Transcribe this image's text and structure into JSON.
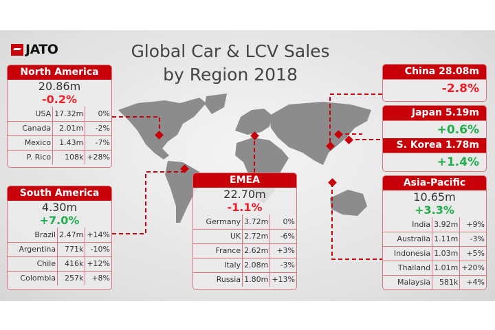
{
  "logo": "JATO",
  "title": {
    "line1": "Global Car & LCV Sales",
    "line2": "by Region 2018"
  },
  "colors": {
    "accent": "#c8000a",
    "negative": "#ee1c25",
    "positive": "#1fae4b"
  },
  "north_america": {
    "name": "North America",
    "total": "20.86m",
    "change": "-0.2%",
    "rows": [
      [
        "USA",
        "17.32m",
        "0%"
      ],
      [
        "Canada",
        "2.01m",
        "-2%"
      ],
      [
        "Mexico",
        "1.43m",
        "-7%"
      ],
      [
        "P. Rico",
        "108k",
        "+28%"
      ]
    ]
  },
  "south_america": {
    "name": "South America",
    "total": "4.30m",
    "change": "+7.0%",
    "rows": [
      [
        "Brazil",
        "2.47m",
        "+14%"
      ],
      [
        "Argentina",
        "771k",
        "-10%"
      ],
      [
        "Chile",
        "416k",
        "+12%"
      ],
      [
        "Colombia",
        "257k",
        "+8%"
      ]
    ]
  },
  "emea": {
    "name": "EMEA",
    "total": "22.70m",
    "change": "-1.1%",
    "rows": [
      [
        "Germany",
        "3.72m",
        "0%"
      ],
      [
        "UK",
        "2.72m",
        "-6%"
      ],
      [
        "France",
        "2.62m",
        "+3%"
      ],
      [
        "Italy",
        "2.08m",
        "-3%"
      ],
      [
        "Russia",
        "1.80m",
        "+13%"
      ]
    ]
  },
  "china": {
    "name": "China 28.08m",
    "change": "-2.8%"
  },
  "japan": {
    "name": "Japan 5.19m",
    "change": "+0.6%"
  },
  "korea": {
    "name": "S. Korea 1.78m",
    "change": "+1.4%"
  },
  "asia_pacific": {
    "name": "Asia-Pacific",
    "total": "10.65m",
    "change": "+3.3%",
    "rows": [
      [
        "India",
        "3.92m",
        "+9%"
      ],
      [
        "Australia",
        "1.11m",
        "-3%"
      ],
      [
        "Indonesia",
        "1.03m",
        "+5%"
      ],
      [
        "Thailand",
        "1.01m",
        "+20%"
      ],
      [
        "Malaysia",
        "581k",
        "+4%"
      ]
    ]
  }
}
